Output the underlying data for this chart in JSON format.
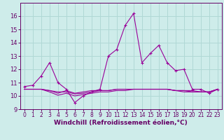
{
  "xlabel": "Windchill (Refroidissement éolien,°C)",
  "background_color": "#ceecea",
  "grid_color": "#b0d8d5",
  "line_color": "#990099",
  "xlim_min": -0.5,
  "xlim_max": 23.5,
  "ylim_min": 9,
  "ylim_max": 17,
  "yticks": [
    9,
    10,
    11,
    12,
    13,
    14,
    15,
    16
  ],
  "xticks": [
    0,
    1,
    2,
    3,
    4,
    5,
    6,
    7,
    8,
    9,
    10,
    11,
    12,
    13,
    14,
    15,
    16,
    17,
    18,
    19,
    20,
    21,
    22,
    23
  ],
  "series1_x": [
    0,
    1,
    2,
    3,
    4,
    5,
    6,
    7,
    8,
    9,
    10,
    11,
    12,
    13,
    14,
    15,
    16,
    17,
    18,
    19,
    20,
    21,
    22,
    23
  ],
  "series1_y": [
    10.7,
    10.8,
    11.5,
    12.5,
    11.0,
    10.5,
    9.5,
    10.0,
    10.3,
    10.5,
    13.0,
    13.5,
    15.3,
    16.2,
    12.5,
    13.2,
    13.8,
    12.5,
    11.9,
    12.0,
    10.5,
    10.5,
    10.2,
    10.5
  ],
  "series2_x": [
    0,
    1,
    2,
    3,
    4,
    5,
    6,
    7,
    8,
    9,
    10,
    11,
    12,
    13,
    14,
    15,
    16,
    17,
    18,
    19,
    20,
    21,
    22,
    23
  ],
  "series2_y": [
    10.5,
    10.5,
    10.5,
    10.4,
    10.2,
    10.4,
    10.2,
    10.3,
    10.4,
    10.4,
    10.4,
    10.5,
    10.5,
    10.5,
    10.5,
    10.5,
    10.5,
    10.5,
    10.4,
    10.4,
    10.4,
    10.3,
    10.3,
    10.5
  ],
  "series3_x": [
    0,
    1,
    2,
    3,
    4,
    5,
    6,
    7,
    8,
    9,
    10,
    11,
    12,
    13,
    14,
    15,
    16,
    17,
    18,
    19,
    20,
    21,
    22,
    23
  ],
  "series3_y": [
    10.5,
    10.5,
    10.5,
    10.3,
    10.05,
    10.2,
    10.0,
    10.1,
    10.2,
    10.3,
    10.3,
    10.4,
    10.4,
    10.5,
    10.5,
    10.5,
    10.5,
    10.5,
    10.4,
    10.3,
    10.3,
    10.3,
    10.3,
    10.5
  ],
  "series4_x": [
    0,
    1,
    2,
    3,
    4,
    5,
    6,
    7,
    8,
    9,
    10,
    11,
    12,
    13,
    14,
    15,
    16,
    17,
    18,
    19,
    20,
    21,
    22,
    23
  ],
  "series4_y": [
    10.5,
    10.5,
    10.5,
    10.4,
    10.3,
    10.3,
    10.15,
    10.2,
    10.3,
    10.4,
    10.4,
    10.5,
    10.5,
    10.5,
    10.5,
    10.5,
    10.5,
    10.5,
    10.4,
    10.4,
    10.3,
    10.3,
    10.3,
    10.5
  ],
  "tick_color": "#660066",
  "spine_color": "#660066",
  "xlabel_fontsize": 6.5,
  "tick_fontsize": 5.5
}
